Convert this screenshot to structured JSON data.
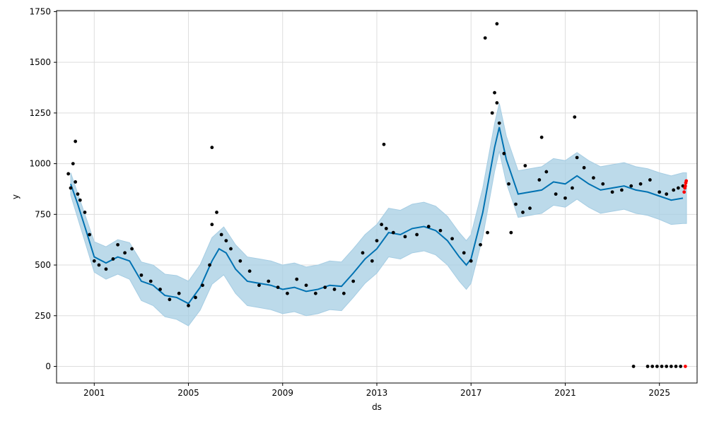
{
  "chart_data": {
    "type": "line",
    "xlabel": "ds",
    "ylabel": "y",
    "x_domain": [
      1999.4,
      2026.6
    ],
    "ylim": [
      -82,
      1755
    ],
    "grid": true,
    "x_ticks": [
      "2001",
      "2005",
      "2009",
      "2013",
      "2017",
      "2021",
      "2025"
    ],
    "y_ticks": [
      "0",
      "250",
      "500",
      "750",
      "1000",
      "1250",
      "1500",
      "1750"
    ],
    "colors": {
      "forecast": "#0072b2",
      "band": "#a6cde3",
      "observed": "#000000",
      "highlight": "#ff0000",
      "grid": "#dddddd"
    },
    "series": [
      {
        "role": "forecast",
        "x": [
          2000.0,
          2000.3,
          2000.6,
          2001.0,
          2001.5,
          2002.0,
          2002.5,
          2003.0,
          2003.5,
          2004.0,
          2004.5,
          2005.0,
          2005.5,
          2006.0,
          2006.3,
          2006.6,
          2007.0,
          2007.5,
          2008.0,
          2008.5,
          2009.0,
          2009.5,
          2010.0,
          2010.5,
          2011.0,
          2011.5,
          2012.0,
          2012.5,
          2013.0,
          2013.5,
          2014.0,
          2014.5,
          2015.0,
          2015.5,
          2016.0,
          2016.5,
          2016.8,
          2017.0,
          2017.5,
          2018.0,
          2018.2,
          2018.5,
          2019.0,
          2019.5,
          2020.0,
          2020.5,
          2021.0,
          2021.5,
          2022.0,
          2022.5,
          2023.0,
          2023.5,
          2024.0,
          2024.5,
          2025.0,
          2025.5,
          2026.0
        ],
        "y": [
          900,
          800,
          690,
          540,
          510,
          540,
          520,
          420,
          400,
          350,
          340,
          310,
          390,
          520,
          580,
          560,
          480,
          420,
          410,
          400,
          380,
          390,
          370,
          380,
          400,
          395,
          460,
          530,
          580,
          660,
          650,
          680,
          690,
          670,
          620,
          540,
          500,
          530,
          760,
          1080,
          1180,
          1020,
          850,
          860,
          870,
          910,
          900,
          940,
          900,
          870,
          880,
          890,
          870,
          860,
          840,
          820,
          830
        ]
      },
      {
        "role": "observed",
        "x": [
          1999.9,
          2000.0,
          2000.1,
          2000.2,
          2000.3,
          2000.4,
          2000.6,
          2000.8,
          2001.0,
          2001.2,
          2001.5,
          2001.8,
          2002.0,
          2002.3,
          2002.6,
          2003.0,
          2003.4,
          2003.8,
          2004.2,
          2004.6,
          2005.0,
          2005.3,
          2005.6,
          2005.9,
          2006.0,
          2006.2,
          2006.4,
          2006.6,
          2006.8,
          2007.2,
          2007.6,
          2008.0,
          2008.4,
          2008.8,
          2009.2,
          2009.6,
          2010.0,
          2010.4,
          2010.8,
          2011.2,
          2011.6,
          2012.0,
          2012.4,
          2012.8,
          2013.0,
          2013.2,
          2013.4,
          2013.7,
          2014.2,
          2014.7,
          2015.2,
          2015.7,
          2016.2,
          2016.7,
          2017.0,
          2017.4,
          2017.7,
          2017.9,
          2018.0,
          2018.1,
          2018.2,
          2018.4,
          2018.6,
          2018.9,
          2019.2,
          2019.5,
          2019.9,
          2020.2,
          2020.6,
          2021.0,
          2021.3,
          2021.5,
          2021.8,
          2022.2,
          2022.6,
          2023.0,
          2023.4,
          2023.8,
          2024.2,
          2024.6,
          2025.0,
          2025.3,
          2025.6,
          2025.8,
          2026.0,
          2023.9,
          2024.5,
          2024.7,
          2024.9,
          2025.1,
          2025.3,
          2025.5,
          2025.7,
          2025.9,
          2000.2,
          2006.0,
          2013.3,
          2017.6,
          2018.1,
          2021.4,
          2020.0,
          2019.3,
          2018.7
        ],
        "y": [
          950,
          880,
          1000,
          910,
          850,
          820,
          760,
          650,
          520,
          500,
          480,
          530,
          600,
          560,
          580,
          450,
          420,
          380,
          330,
          360,
          300,
          340,
          400,
          500,
          700,
          760,
          650,
          620,
          580,
          520,
          470,
          400,
          420,
          390,
          360,
          430,
          400,
          360,
          390,
          380,
          360,
          420,
          560,
          520,
          620,
          700,
          680,
          660,
          640,
          650,
          690,
          670,
          630,
          560,
          520,
          600,
          660,
          1250,
          1350,
          1300,
          1200,
          1050,
          900,
          800,
          760,
          780,
          920,
          960,
          850,
          830,
          880,
          1030,
          980,
          930,
          900,
          860,
          870,
          890,
          900,
          920,
          860,
          850,
          870,
          880,
          890,
          0,
          0,
          0,
          0,
          0,
          0,
          0,
          0,
          0,
          1110,
          1080,
          1095,
          1620,
          1690,
          1230,
          1130,
          990,
          660
        ]
      },
      {
        "role": "highlight",
        "x": [
          2026.05,
          2026.08,
          2026.1,
          2026.12,
          2026.14,
          2026.1
        ],
        "y": [
          860,
          880,
          890,
          905,
          915,
          0
        ]
      }
    ],
    "band": {
      "x": [
        2000.0,
        2000.5,
        2001.0,
        2001.5,
        2002.0,
        2002.5,
        2003.0,
        2003.5,
        2004.0,
        2004.5,
        2005.0,
        2005.5,
        2006.0,
        2006.5,
        2007.0,
        2007.5,
        2008.0,
        2008.5,
        2009.0,
        2009.5,
        2010.0,
        2010.5,
        2011.0,
        2011.5,
        2012.0,
        2012.5,
        2013.0,
        2013.5,
        2014.0,
        2014.5,
        2015.0,
        2015.5,
        2016.0,
        2016.5,
        2016.8,
        2017.0,
        2017.5,
        2018.0,
        2018.2,
        2018.5,
        2019.0,
        2019.5,
        2020.0,
        2020.5,
        2021.0,
        2021.5,
        2022.0,
        2022.5,
        2023.0,
        2023.5,
        2024.0,
        2024.5,
        2025.0,
        2025.5,
        2026.0,
        2026.15
      ],
      "mid": [
        900,
        720,
        540,
        510,
        540,
        520,
        420,
        400,
        350,
        340,
        310,
        390,
        520,
        570,
        480,
        420,
        410,
        400,
        380,
        390,
        370,
        380,
        400,
        395,
        460,
        530,
        580,
        660,
        650,
        680,
        690,
        670,
        620,
        540,
        500,
        530,
        760,
        1080,
        1180,
        1020,
        850,
        860,
        870,
        910,
        900,
        940,
        900,
        870,
        880,
        890,
        870,
        860,
        840,
        820,
        830,
        830
      ],
      "halfwidth": [
        55,
        65,
        75,
        80,
        85,
        90,
        95,
        100,
        105,
        108,
        110,
        112,
        115,
        118,
        120,
        120,
        120,
        120,
        120,
        120,
        120,
        120,
        120,
        120,
        120,
        120,
        120,
        120,
        120,
        120,
        120,
        120,
        120,
        120,
        120,
        120,
        120,
        118,
        118,
        115,
        115,
        115,
        115,
        115,
        115,
        115,
        115,
        115,
        115,
        115,
        115,
        115,
        115,
        120,
        125,
        125
      ]
    }
  }
}
